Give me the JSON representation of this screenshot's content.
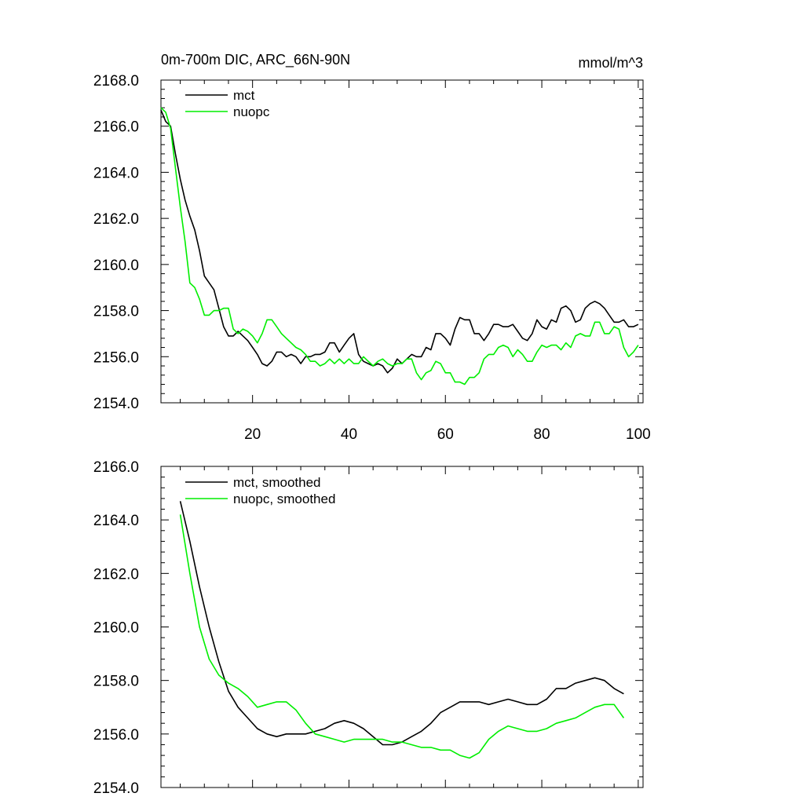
{
  "chart_data": [
    {
      "type": "line",
      "title": "0m-700m DIC, ARC_66N-90N",
      "units": "mmol/m^3",
      "xlim": [
        1,
        101
      ],
      "ylim": [
        2154.0,
        2168.0
      ],
      "xticks": [
        20,
        40,
        60,
        80,
        100
      ],
      "yticks": [
        2154.0,
        2156.0,
        2158.0,
        2160.0,
        2162.0,
        2164.0,
        2166.0,
        2168.0
      ],
      "xtick_labels": [
        "20",
        "40",
        "60",
        "80",
        "100"
      ],
      "ytick_labels": [
        "2154.0",
        "2156.0",
        "2158.0",
        "2160.0",
        "2162.0",
        "2164.0",
        "2166.0",
        "2168.0"
      ],
      "legend_position": "top-left",
      "series": [
        {
          "name": "mct",
          "color": "#000000",
          "x": [
            1,
            2,
            3,
            4,
            5,
            6,
            7,
            8,
            9,
            10,
            11,
            12,
            13,
            14,
            15,
            16,
            17,
            18,
            19,
            20,
            21,
            22,
            23,
            24,
            25,
            26,
            27,
            28,
            29,
            30,
            31,
            32,
            33,
            34,
            35,
            36,
            37,
            38,
            39,
            40,
            41,
            42,
            43,
            44,
            45,
            46,
            47,
            48,
            49,
            50,
            51,
            52,
            53,
            54,
            55,
            56,
            57,
            58,
            59,
            60,
            61,
            62,
            63,
            64,
            65,
            66,
            67,
            68,
            69,
            70,
            71,
            72,
            73,
            74,
            75,
            76,
            77,
            78,
            79,
            80,
            81,
            82,
            83,
            84,
            85,
            86,
            87,
            88,
            89,
            90,
            91,
            92,
            93,
            94,
            95,
            96,
            97,
            98,
            99,
            100
          ],
          "values": [
            2166.7,
            2166.2,
            2166.0,
            2164.8,
            2163.7,
            2162.8,
            2162.1,
            2161.5,
            2160.6,
            2159.5,
            2159.2,
            2158.9,
            2158.1,
            2157.3,
            2156.9,
            2156.9,
            2157.1,
            2156.9,
            2156.7,
            2156.4,
            2156.1,
            2155.7,
            2155.6,
            2155.8,
            2156.2,
            2156.2,
            2156.0,
            2156.1,
            2156.0,
            2155.7,
            2156.0,
            2156.0,
            2156.1,
            2156.1,
            2156.2,
            2156.6,
            2156.6,
            2156.2,
            2156.5,
            2156.8,
            2157.0,
            2156.1,
            2155.8,
            2155.7,
            2155.6,
            2155.7,
            2155.6,
            2155.3,
            2155.5,
            2155.9,
            2155.7,
            2155.9,
            2156.1,
            2156.0,
            2156.0,
            2156.4,
            2156.3,
            2157.0,
            2157.0,
            2156.8,
            2156.5,
            2157.2,
            2157.7,
            2157.6,
            2157.6,
            2157.0,
            2157.0,
            2156.7,
            2157.0,
            2157.4,
            2157.4,
            2157.3,
            2157.3,
            2157.4,
            2157.1,
            2156.8,
            2156.7,
            2157.0,
            2157.6,
            2157.3,
            2157.2,
            2157.6,
            2157.5,
            2158.1,
            2158.2,
            2158.0,
            2157.5,
            2157.6,
            2158.1,
            2158.3,
            2158.4,
            2158.3,
            2158.1,
            2157.8,
            2157.5,
            2157.5,
            2157.6,
            2157.3,
            2157.3,
            2157.4
          ]
        },
        {
          "name": "nuopc",
          "color": "#00ee00",
          "x": [
            1,
            2,
            3,
            4,
            5,
            6,
            7,
            8,
            9,
            10,
            11,
            12,
            13,
            14,
            15,
            16,
            17,
            18,
            19,
            20,
            21,
            22,
            23,
            24,
            25,
            26,
            27,
            28,
            29,
            30,
            31,
            32,
            33,
            34,
            35,
            36,
            37,
            38,
            39,
            40,
            41,
            42,
            43,
            44,
            45,
            46,
            47,
            48,
            49,
            50,
            51,
            52,
            53,
            54,
            55,
            56,
            57,
            58,
            59,
            60,
            61,
            62,
            63,
            64,
            65,
            66,
            67,
            68,
            69,
            70,
            71,
            72,
            73,
            74,
            75,
            76,
            77,
            78,
            79,
            80,
            81,
            82,
            83,
            84,
            85,
            86,
            87,
            88,
            89,
            90,
            91,
            92,
            93,
            94,
            95,
            96,
            97,
            98,
            99,
            100
          ],
          "values": [
            2166.8,
            2166.6,
            2165.9,
            2164.2,
            2162.5,
            2161.0,
            2159.2,
            2159.0,
            2158.5,
            2157.8,
            2157.8,
            2158.0,
            2158.0,
            2158.1,
            2158.1,
            2157.2,
            2157.0,
            2157.2,
            2157.1,
            2156.9,
            2156.6,
            2157.0,
            2157.6,
            2157.6,
            2157.3,
            2157.0,
            2156.8,
            2156.6,
            2156.4,
            2156.3,
            2156.1,
            2155.8,
            2155.8,
            2155.6,
            2155.7,
            2155.9,
            2155.7,
            2155.9,
            2155.7,
            2155.9,
            2155.7,
            2155.7,
            2156.0,
            2155.8,
            2155.6,
            2155.8,
            2155.9,
            2155.7,
            2155.6,
            2155.7,
            2155.7,
            2155.9,
            2155.9,
            2155.3,
            2155.0,
            2155.3,
            2155.4,
            2155.8,
            2155.7,
            2155.3,
            2155.3,
            2154.9,
            2154.9,
            2154.8,
            2155.1,
            2155.1,
            2155.3,
            2155.9,
            2156.1,
            2156.1,
            2156.4,
            2156.5,
            2156.4,
            2156.0,
            2156.3,
            2156.1,
            2155.8,
            2155.8,
            2156.2,
            2156.5,
            2156.4,
            2156.5,
            2156.5,
            2156.3,
            2156.6,
            2156.4,
            2156.9,
            2157.0,
            2156.9,
            2156.9,
            2157.5,
            2157.5,
            2157.0,
            2157.0,
            2157.3,
            2157.2,
            2156.4,
            2156.0,
            2156.2,
            2156.5
          ]
        }
      ]
    },
    {
      "type": "line",
      "title": "",
      "xlim": [
        1,
        101
      ],
      "ylim": [
        2154.0,
        2166.0
      ],
      "xticks": [
        20,
        40,
        60,
        80,
        100
      ],
      "yticks": [
        2154.0,
        2156.0,
        2158.0,
        2160.0,
        2162.0,
        2164.0,
        2166.0
      ],
      "ytick_labels": [
        "2154.0",
        "2156.0",
        "2158.0",
        "2160.0",
        "2162.0",
        "2164.0",
        "2166.0"
      ],
      "legend_position": "top-left",
      "series": [
        {
          "name": "mct, smoothed",
          "color": "#000000",
          "x": [
            5,
            7,
            9,
            11,
            13,
            15,
            17,
            19,
            21,
            23,
            25,
            27,
            29,
            31,
            33,
            35,
            37,
            39,
            41,
            43,
            45,
            47,
            49,
            51,
            53,
            55,
            57,
            59,
            61,
            63,
            65,
            67,
            69,
            71,
            73,
            75,
            77,
            79,
            81,
            83,
            85,
            87,
            89,
            91,
            93,
            95,
            97
          ],
          "values": [
            2164.7,
            2163.2,
            2161.5,
            2160.0,
            2158.7,
            2157.6,
            2157.0,
            2156.6,
            2156.2,
            2156.0,
            2155.9,
            2156.0,
            2156.0,
            2156.0,
            2156.1,
            2156.2,
            2156.4,
            2156.5,
            2156.4,
            2156.2,
            2155.9,
            2155.6,
            2155.6,
            2155.7,
            2155.9,
            2156.1,
            2156.4,
            2156.8,
            2157.0,
            2157.2,
            2157.2,
            2157.2,
            2157.1,
            2157.2,
            2157.3,
            2157.2,
            2157.1,
            2157.1,
            2157.3,
            2157.7,
            2157.7,
            2157.9,
            2158.0,
            2158.1,
            2158.0,
            2157.7,
            2157.5
          ]
        },
        {
          "name": "nuopc, smoothed",
          "color": "#00ee00",
          "x": [
            5,
            7,
            9,
            11,
            13,
            15,
            17,
            19,
            21,
            23,
            25,
            27,
            29,
            31,
            33,
            35,
            37,
            39,
            41,
            43,
            45,
            47,
            49,
            51,
            53,
            55,
            57,
            59,
            61,
            63,
            65,
            67,
            69,
            71,
            73,
            75,
            77,
            79,
            81,
            83,
            85,
            87,
            89,
            91,
            93,
            95,
            97
          ],
          "values": [
            2164.2,
            2162.0,
            2160.0,
            2158.8,
            2158.2,
            2157.9,
            2157.7,
            2157.4,
            2157.0,
            2157.1,
            2157.2,
            2157.2,
            2156.9,
            2156.4,
            2156.0,
            2155.9,
            2155.8,
            2155.7,
            2155.8,
            2155.8,
            2155.8,
            2155.8,
            2155.7,
            2155.7,
            2155.6,
            2155.5,
            2155.5,
            2155.4,
            2155.4,
            2155.2,
            2155.1,
            2155.3,
            2155.8,
            2156.1,
            2156.3,
            2156.2,
            2156.1,
            2156.1,
            2156.2,
            2156.4,
            2156.5,
            2156.6,
            2156.8,
            2157.0,
            2157.1,
            2157.1,
            2156.6
          ]
        }
      ]
    }
  ]
}
